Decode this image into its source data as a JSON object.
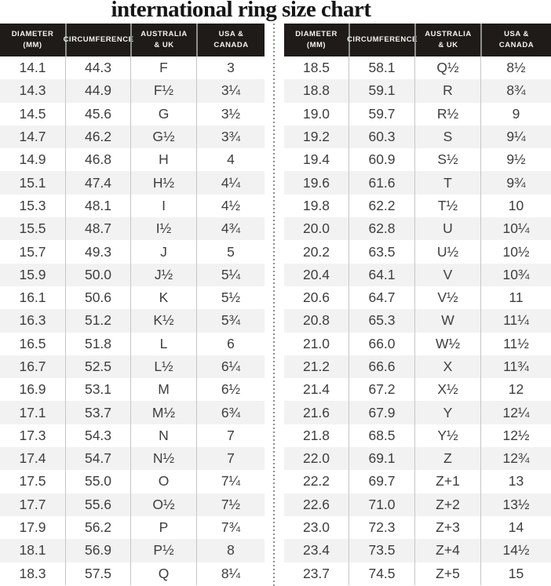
{
  "chart_data": {
    "type": "table",
    "title": "international ring size chart",
    "header": [
      [
        "DIAMETER",
        "(mm)"
      ],
      [
        "CIRCUMFERENCE"
      ],
      [
        "AUSTRALIA",
        "& UK"
      ],
      [
        "USA &",
        "CANADA"
      ]
    ],
    "columns_flat": [
      "Diameter (mm)",
      "Circumference",
      "Australia & UK",
      "USA & Canada"
    ],
    "tables": [
      {
        "name": "left",
        "rows": [
          [
            "14.1",
            "44.3",
            "F",
            "3"
          ],
          [
            "14.3",
            "44.9",
            "F½",
            "3¼"
          ],
          [
            "14.5",
            "45.6",
            "G",
            "3½"
          ],
          [
            "14.7",
            "46.2",
            "G½",
            "3¾"
          ],
          [
            "14.9",
            "46.8",
            "H",
            "4"
          ],
          [
            "15.1",
            "47.4",
            "H½",
            "4¼"
          ],
          [
            "15.3",
            "48.1",
            "I",
            "4½"
          ],
          [
            "15.5",
            "48.7",
            "I½",
            "4¾"
          ],
          [
            "15.7",
            "49.3",
            "J",
            "5"
          ],
          [
            "15.9",
            "50.0",
            "J½",
            "5¼"
          ],
          [
            "16.1",
            "50.6",
            "K",
            "5½"
          ],
          [
            "16.3",
            "51.2",
            "K½",
            "5¾"
          ],
          [
            "16.5",
            "51.8",
            "L",
            "6"
          ],
          [
            "16.7",
            "52.5",
            "L½",
            "6¼"
          ],
          [
            "16.9",
            "53.1",
            "M",
            "6½"
          ],
          [
            "17.1",
            "53.7",
            "M½",
            "6¾"
          ],
          [
            "17.3",
            "54.3",
            "N",
            "7"
          ],
          [
            "17.4",
            "54.7",
            "N½",
            "7"
          ],
          [
            "17.5",
            "55.0",
            "O",
            "7¼"
          ],
          [
            "17.7",
            "55.6",
            "O½",
            "7½"
          ],
          [
            "17.9",
            "56.2",
            "P",
            "7¾"
          ],
          [
            "18.1",
            "56.9",
            "P½",
            "8"
          ],
          [
            "18.3",
            "57.5",
            "Q",
            "8¼"
          ]
        ]
      },
      {
        "name": "right",
        "rows": [
          [
            "18.5",
            "58.1",
            "Q½",
            "8½"
          ],
          [
            "18.8",
            "59.1",
            "R",
            "8¾"
          ],
          [
            "19.0",
            "59.7",
            "R½",
            "9"
          ],
          [
            "19.2",
            "60.3",
            "S",
            "9¼"
          ],
          [
            "19.4",
            "60.9",
            "S½",
            "9½"
          ],
          [
            "19.6",
            "61.6",
            "T",
            "9¾"
          ],
          [
            "19.8",
            "62.2",
            "T½",
            "10"
          ],
          [
            "20.0",
            "62.8",
            "U",
            "10¼"
          ],
          [
            "20.2",
            "63.5",
            "U½",
            "10½"
          ],
          [
            "20.4",
            "64.1",
            "V",
            "10¾"
          ],
          [
            "20.6",
            "64.7",
            "V½",
            "11"
          ],
          [
            "20.8",
            "65.3",
            "W",
            "11¼"
          ],
          [
            "21.0",
            "66.0",
            "W½",
            "11½"
          ],
          [
            "21.2",
            "66.6",
            "X",
            "11¾"
          ],
          [
            "21.4",
            "67.2",
            "X½",
            "12"
          ],
          [
            "21.6",
            "67.9",
            "Y",
            "12¼"
          ],
          [
            "21.8",
            "68.5",
            "Y½",
            "12½"
          ],
          [
            "22.0",
            "69.1",
            "Z",
            "12¾"
          ],
          [
            "22.2",
            "69.7",
            "Z+1",
            "13"
          ],
          [
            "22.6",
            "71.0",
            "Z+2",
            "13½"
          ],
          [
            "23.0",
            "72.3",
            "Z+3",
            "14"
          ],
          [
            "23.4",
            "73.5",
            "Z+4",
            "14½"
          ],
          [
            "23.7",
            "74.5",
            "Z+5",
            "15"
          ]
        ]
      }
    ],
    "layout": {
      "legend_position": "none",
      "grid": "row-stripes",
      "divider": "vertical-dotted"
    },
    "colors": {
      "header_bg": "#1e1b18",
      "header_text": "#f5f3f0",
      "row_alt_bg": "#f2f2f2",
      "body_text": "#3e3e3e",
      "column_separator": "#c6c6c6",
      "header_separator": "#8f8f8f",
      "divider_dots": "#8c8c8c",
      "title_text": "#151515"
    }
  }
}
